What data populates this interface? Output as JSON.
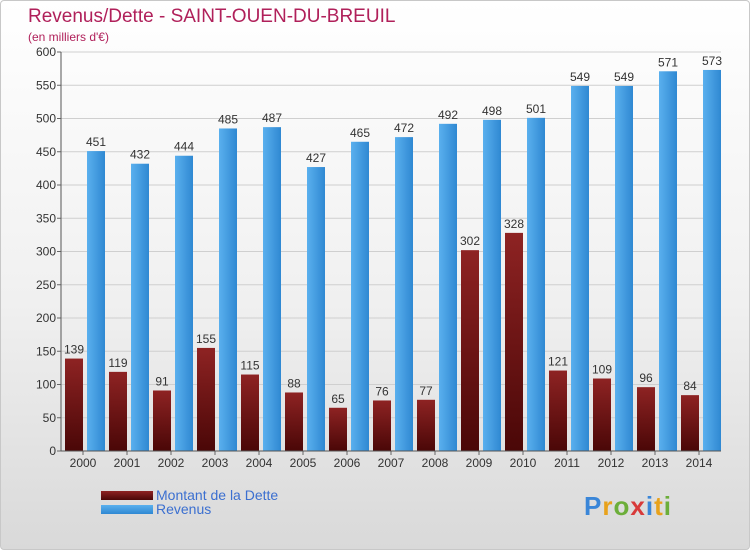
{
  "chart_data": {
    "type": "bar",
    "title": "Revenus/Dette - SAINT-OUEN-DU-BREUIL",
    "subtitle": "(en milliers d'€)",
    "categories": [
      "2000",
      "2001",
      "2002",
      "2003",
      "2004",
      "2005",
      "2006",
      "2007",
      "2008",
      "2009",
      "2010",
      "2011",
      "2012",
      "2013",
      "2014"
    ],
    "series": [
      {
        "name": "Montant de la Dette",
        "color": "#7a1414",
        "values": [
          139,
          119,
          91,
          155,
          115,
          88,
          65,
          76,
          77,
          302,
          328,
          121,
          109,
          96,
          84
        ]
      },
      {
        "name": "Revenus",
        "color": "#3f9ae0",
        "values": [
          451,
          432,
          444,
          485,
          487,
          427,
          465,
          472,
          492,
          498,
          501,
          549,
          549,
          571,
          573
        ]
      }
    ],
    "ylim": [
      0,
      600
    ],
    "yticks": [
      0,
      50,
      100,
      150,
      200,
      250,
      300,
      350,
      400,
      450,
      500,
      550,
      600
    ],
    "grid": true,
    "legend_position": "bottom-left"
  },
  "brand": {
    "name": "Proxiti"
  }
}
